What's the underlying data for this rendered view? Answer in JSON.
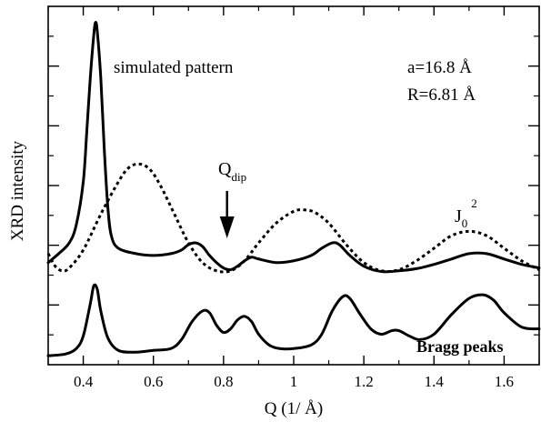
{
  "chart_data": {
    "type": "line",
    "xlabel": "Q (1/ Å)",
    "ylabel": "XRD intensity",
    "xlim": [
      0.3,
      1.7
    ],
    "ylim": [
      0,
      1
    ],
    "x_ticks": [
      0.4,
      0.6,
      0.8,
      1.0,
      1.2,
      1.4,
      1.6
    ],
    "x_tick_labels": [
      "0.4",
      "0.6",
      "0.8",
      "1",
      "1.2",
      "1.4",
      "1.6"
    ],
    "y_tick_labels_shown": false,
    "grid": false,
    "series": [
      {
        "name": "simulated pattern",
        "style": "solid",
        "color": "#000000",
        "points": [
          [
            0.3,
            0.285
          ],
          [
            0.33,
            0.31
          ],
          [
            0.36,
            0.34
          ],
          [
            0.38,
            0.39
          ],
          [
            0.4,
            0.51
          ],
          [
            0.41,
            0.65
          ],
          [
            0.42,
            0.8
          ],
          [
            0.43,
            0.92
          ],
          [
            0.435,
            0.955
          ],
          [
            0.44,
            0.93
          ],
          [
            0.45,
            0.8
          ],
          [
            0.46,
            0.6
          ],
          [
            0.47,
            0.44
          ],
          [
            0.48,
            0.36
          ],
          [
            0.5,
            0.325
          ],
          [
            0.55,
            0.31
          ],
          [
            0.6,
            0.305
          ],
          [
            0.65,
            0.31
          ],
          [
            0.68,
            0.32
          ],
          [
            0.7,
            0.335
          ],
          [
            0.72,
            0.34
          ],
          [
            0.74,
            0.33
          ],
          [
            0.76,
            0.305
          ],
          [
            0.78,
            0.285
          ],
          [
            0.8,
            0.27
          ],
          [
            0.82,
            0.265
          ],
          [
            0.84,
            0.275
          ],
          [
            0.86,
            0.29
          ],
          [
            0.88,
            0.3
          ],
          [
            0.9,
            0.295
          ],
          [
            0.95,
            0.285
          ],
          [
            1.0,
            0.29
          ],
          [
            1.05,
            0.305
          ],
          [
            1.08,
            0.325
          ],
          [
            1.11,
            0.34
          ],
          [
            1.13,
            0.335
          ],
          [
            1.16,
            0.305
          ],
          [
            1.2,
            0.275
          ],
          [
            1.25,
            0.26
          ],
          [
            1.3,
            0.262
          ],
          [
            1.35,
            0.268
          ],
          [
            1.4,
            0.28
          ],
          [
            1.45,
            0.295
          ],
          [
            1.5,
            0.31
          ],
          [
            1.55,
            0.31
          ],
          [
            1.6,
            0.295
          ],
          [
            1.65,
            0.28
          ],
          [
            1.7,
            0.27
          ]
        ]
      },
      {
        "name": "J0^2",
        "style": "dotted",
        "color": "#000000",
        "points": [
          [
            0.3,
            0.31
          ],
          [
            0.32,
            0.275
          ],
          [
            0.34,
            0.262
          ],
          [
            0.36,
            0.27
          ],
          [
            0.4,
            0.32
          ],
          [
            0.45,
            0.42
          ],
          [
            0.5,
            0.51
          ],
          [
            0.53,
            0.55
          ],
          [
            0.56,
            0.56
          ],
          [
            0.59,
            0.545
          ],
          [
            0.62,
            0.5
          ],
          [
            0.66,
            0.42
          ],
          [
            0.7,
            0.34
          ],
          [
            0.74,
            0.285
          ],
          [
            0.78,
            0.262
          ],
          [
            0.82,
            0.262
          ],
          [
            0.86,
            0.29
          ],
          [
            0.9,
            0.34
          ],
          [
            0.95,
            0.395
          ],
          [
            1.0,
            0.428
          ],
          [
            1.03,
            0.432
          ],
          [
            1.06,
            0.425
          ],
          [
            1.1,
            0.395
          ],
          [
            1.15,
            0.335
          ],
          [
            1.2,
            0.285
          ],
          [
            1.25,
            0.262
          ],
          [
            1.3,
            0.265
          ],
          [
            1.35,
            0.29
          ],
          [
            1.4,
            0.325
          ],
          [
            1.45,
            0.36
          ],
          [
            1.5,
            0.372
          ],
          [
            1.55,
            0.36
          ],
          [
            1.6,
            0.325
          ],
          [
            1.65,
            0.29
          ],
          [
            1.7,
            0.265
          ]
        ]
      },
      {
        "name": "Bragg peaks",
        "style": "solid",
        "color": "#000000",
        "points": [
          [
            0.3,
            0.025
          ],
          [
            0.35,
            0.03
          ],
          [
            0.38,
            0.045
          ],
          [
            0.4,
            0.08
          ],
          [
            0.42,
            0.17
          ],
          [
            0.43,
            0.22
          ],
          [
            0.44,
            0.21
          ],
          [
            0.45,
            0.15
          ],
          [
            0.47,
            0.075
          ],
          [
            0.5,
            0.04
          ],
          [
            0.55,
            0.035
          ],
          [
            0.6,
            0.04
          ],
          [
            0.65,
            0.045
          ],
          [
            0.68,
            0.07
          ],
          [
            0.71,
            0.12
          ],
          [
            0.74,
            0.15
          ],
          [
            0.76,
            0.145
          ],
          [
            0.78,
            0.11
          ],
          [
            0.8,
            0.09
          ],
          [
            0.82,
            0.1
          ],
          [
            0.84,
            0.125
          ],
          [
            0.86,
            0.135
          ],
          [
            0.88,
            0.12
          ],
          [
            0.9,
            0.085
          ],
          [
            0.93,
            0.055
          ],
          [
            0.96,
            0.045
          ],
          [
            1.0,
            0.045
          ],
          [
            1.05,
            0.055
          ],
          [
            1.08,
            0.085
          ],
          [
            1.11,
            0.15
          ],
          [
            1.14,
            0.19
          ],
          [
            1.16,
            0.185
          ],
          [
            1.19,
            0.14
          ],
          [
            1.22,
            0.1
          ],
          [
            1.25,
            0.085
          ],
          [
            1.28,
            0.095
          ],
          [
            1.3,
            0.095
          ],
          [
            1.33,
            0.08
          ],
          [
            1.36,
            0.07
          ],
          [
            1.4,
            0.085
          ],
          [
            1.45,
            0.14
          ],
          [
            1.5,
            0.185
          ],
          [
            1.54,
            0.195
          ],
          [
            1.57,
            0.18
          ],
          [
            1.6,
            0.145
          ],
          [
            1.65,
            0.105
          ],
          [
            1.7,
            0.1
          ]
        ]
      }
    ],
    "annotations": {
      "simulated_label": "simulated pattern",
      "a_param": "a=16.8 Å",
      "r_param": "R=6.81 Å",
      "qdip_main": "Q",
      "qdip_sub": "dip",
      "qdip_value": 0.81,
      "j_main": "J",
      "j_sub": "0",
      "j_sup": "2",
      "bragg_label": "Bragg peaks"
    }
  }
}
